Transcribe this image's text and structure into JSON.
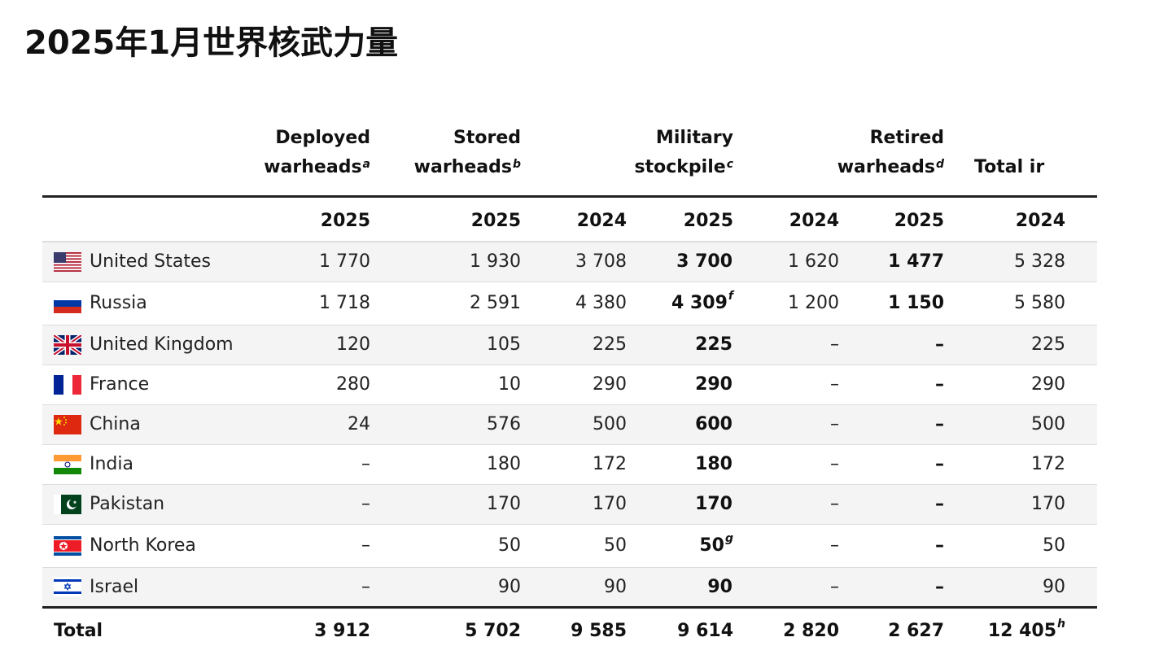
{
  "title": "2025年1月世界核武力量",
  "header": {
    "deployed": "Deployed",
    "deployed2": "warheads",
    "deployed_sup": "a",
    "stored": "Stored",
    "stored2": "warheads",
    "stored_sup": "b",
    "military": "Military",
    "military2": "stockpile",
    "military_sup": "c",
    "retired": "Retired",
    "retired2": "warheads",
    "retired_sup": "d",
    "total": "Total ir"
  },
  "years": [
    "2025",
    "2025",
    "2024",
    "2025",
    "2024",
    "2025",
    "2024"
  ],
  "rows": [
    {
      "country": "United States",
      "flag_icon": "us-flag-icon",
      "deployed": "1 770",
      "stored": "1 930",
      "mil24": "3 708",
      "mil25": "3 700",
      "mil25_sup": "",
      "ret24": "1 620",
      "ret25": "1 477",
      "tot24": "5 328"
    },
    {
      "country": "Russia",
      "flag_icon": "russia-flag-icon",
      "deployed": "1 718",
      "stored": "2 591",
      "mil24": "4 380",
      "mil25": "4 309",
      "mil25_sup": "f",
      "ret24": "1 200",
      "ret25": "1 150",
      "tot24": "5 580"
    },
    {
      "country": "United Kingdom",
      "flag_icon": "uk-flag-icon",
      "deployed": "120",
      "stored": "105",
      "mil24": "225",
      "mil25": "225",
      "mil25_sup": "",
      "ret24": "–",
      "ret25": "–",
      "tot24": "225"
    },
    {
      "country": "France",
      "flag_icon": "france-flag-icon",
      "deployed": "280",
      "stored": "10",
      "mil24": "290",
      "mil25": "290",
      "mil25_sup": "",
      "ret24": "–",
      "ret25": "–",
      "tot24": "290"
    },
    {
      "country": "China",
      "flag_icon": "china-flag-icon",
      "deployed": "24",
      "stored": "576",
      "mil24": "500",
      "mil25": "600",
      "mil25_sup": "",
      "ret24": "–",
      "ret25": "–",
      "tot24": "500"
    },
    {
      "country": "India",
      "flag_icon": "india-flag-icon",
      "deployed": "–",
      "stored": "180",
      "mil24": "172",
      "mil25": "180",
      "mil25_sup": "",
      "ret24": "–",
      "ret25": "–",
      "tot24": "172"
    },
    {
      "country": "Pakistan",
      "flag_icon": "pakistan-flag-icon",
      "deployed": "–",
      "stored": "170",
      "mil24": "170",
      "mil25": "170",
      "mil25_sup": "",
      "ret24": "–",
      "ret25": "–",
      "tot24": "170"
    },
    {
      "country": "North Korea",
      "flag_icon": "north-korea-flag-icon",
      "deployed": "–",
      "stored": "50",
      "mil24": "50",
      "mil25": "50",
      "mil25_sup": "g",
      "ret24": "–",
      "ret25": "–",
      "tot24": "50"
    },
    {
      "country": "Israel",
      "flag_icon": "israel-flag-icon",
      "deployed": "–",
      "stored": "90",
      "mil24": "90",
      "mil25": "90",
      "mil25_sup": "",
      "ret24": "–",
      "ret25": "–",
      "tot24": "90"
    }
  ],
  "total": {
    "label": "Total",
    "deployed": "3 912",
    "stored": "5 702",
    "mil24": "9 585",
    "mil25": "9 614",
    "ret24": "2 820",
    "ret25": "2 627",
    "tot24": "12 405",
    "tot24_sup": "h"
  }
}
